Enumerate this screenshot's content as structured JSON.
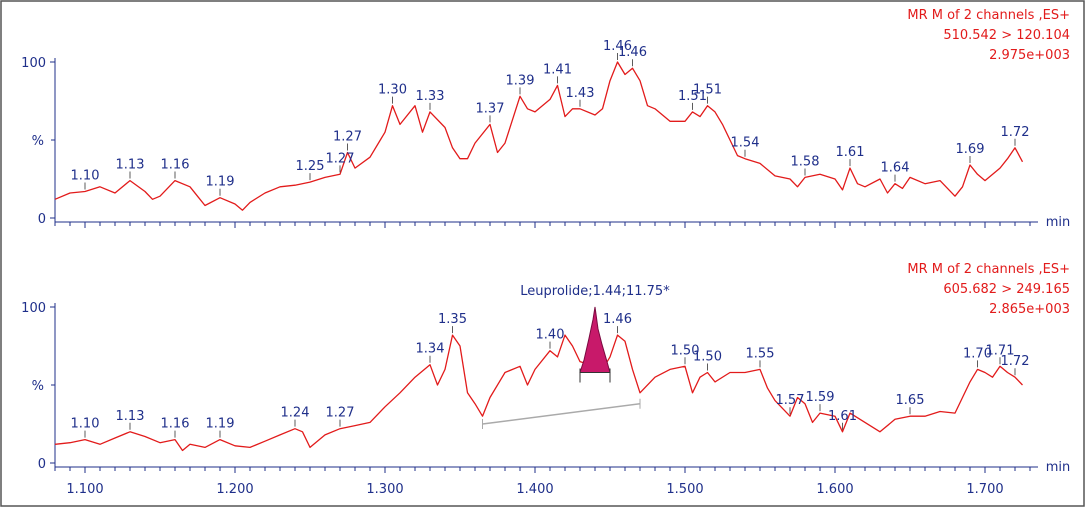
{
  "chart_data": [
    {
      "type": "line",
      "header": [
        "MR M of 2 channels ,ES+",
        "510.542 > 120.104",
        "2.975e+003"
      ],
      "xlabel": "min",
      "ylabel": "%",
      "y_ticks": [
        "100",
        "0"
      ],
      "ylim": [
        0,
        100
      ],
      "xlim": [
        1.08,
        1.73
      ],
      "series": [
        {
          "values": [
            [
              1.08,
              12
            ],
            [
              1.09,
              16
            ],
            [
              1.1,
              17
            ],
            [
              1.11,
              20
            ],
            [
              1.12,
              16
            ],
            [
              1.13,
              24
            ],
            [
              1.14,
              17
            ],
            [
              1.145,
              12
            ],
            [
              1.15,
              14
            ],
            [
              1.16,
              24
            ],
            [
              1.17,
              20
            ],
            [
              1.175,
              14
            ],
            [
              1.18,
              8
            ],
            [
              1.19,
              13
            ],
            [
              1.2,
              9
            ],
            [
              1.205,
              5
            ],
            [
              1.21,
              10
            ],
            [
              1.22,
              16
            ],
            [
              1.23,
              20
            ],
            [
              1.24,
              21
            ],
            [
              1.25,
              23
            ],
            [
              1.26,
              26
            ],
            [
              1.27,
              28
            ],
            [
              1.275,
              42
            ],
            [
              1.28,
              32
            ],
            [
              1.29,
              39
            ],
            [
              1.3,
              55
            ],
            [
              1.305,
              72
            ],
            [
              1.31,
              60
            ],
            [
              1.32,
              72
            ],
            [
              1.325,
              55
            ],
            [
              1.33,
              68
            ],
            [
              1.34,
              58
            ],
            [
              1.345,
              45
            ],
            [
              1.35,
              38
            ],
            [
              1.355,
              38
            ],
            [
              1.36,
              48
            ],
            [
              1.37,
              60
            ],
            [
              1.375,
              42
            ],
            [
              1.38,
              48
            ],
            [
              1.39,
              78
            ],
            [
              1.395,
              70
            ],
            [
              1.4,
              68
            ],
            [
              1.41,
              76
            ],
            [
              1.415,
              85
            ],
            [
              1.42,
              65
            ],
            [
              1.425,
              70
            ],
            [
              1.43,
              70
            ],
            [
              1.44,
              66
            ],
            [
              1.445,
              70
            ],
            [
              1.45,
              88
            ],
            [
              1.455,
              100
            ],
            [
              1.46,
              92
            ],
            [
              1.465,
              96
            ],
            [
              1.47,
              88
            ],
            [
              1.475,
              72
            ],
            [
              1.48,
              70
            ],
            [
              1.49,
              62
            ],
            [
              1.5,
              62
            ],
            [
              1.505,
              68
            ],
            [
              1.51,
              65
            ],
            [
              1.515,
              72
            ],
            [
              1.52,
              68
            ],
            [
              1.525,
              60
            ],
            [
              1.53,
              50
            ],
            [
              1.535,
              40
            ],
            [
              1.54,
              38
            ],
            [
              1.55,
              35
            ],
            [
              1.56,
              27
            ],
            [
              1.57,
              25
            ],
            [
              1.575,
              20
            ],
            [
              1.58,
              26
            ],
            [
              1.59,
              28
            ],
            [
              1.6,
              25
            ],
            [
              1.605,
              18
            ],
            [
              1.61,
              32
            ],
            [
              1.615,
              22
            ],
            [
              1.62,
              20
            ],
            [
              1.63,
              25
            ],
            [
              1.635,
              16
            ],
            [
              1.64,
              22
            ],
            [
              1.645,
              19
            ],
            [
              1.65,
              26
            ],
            [
              1.66,
              22
            ],
            [
              1.67,
              24
            ],
            [
              1.68,
              14
            ],
            [
              1.685,
              20
            ],
            [
              1.69,
              34
            ],
            [
              1.695,
              28
            ],
            [
              1.7,
              24
            ],
            [
              1.71,
              32
            ],
            [
              1.715,
              38
            ],
            [
              1.72,
              45
            ],
            [
              1.725,
              36
            ]
          ]
        }
      ],
      "peak_labels": [
        {
          "text": "1.10",
          "x": 1.1,
          "y": 17
        },
        {
          "text": "1.13",
          "x": 1.13,
          "y": 24
        },
        {
          "text": "1.16",
          "x": 1.16,
          "y": 24
        },
        {
          "text": "1.19",
          "x": 1.19,
          "y": 13
        },
        {
          "text": "1.25",
          "x": 1.25,
          "y": 23
        },
        {
          "text": "1.27",
          "x": 1.27,
          "y": 28
        },
        {
          "text": "1.27",
          "x": 1.275,
          "y": 42
        },
        {
          "text": "1.30",
          "x": 1.305,
          "y": 72
        },
        {
          "text": "1.33",
          "x": 1.33,
          "y": 68
        },
        {
          "text": "1.37",
          "x": 1.37,
          "y": 60
        },
        {
          "text": "1.39",
          "x": 1.39,
          "y": 78
        },
        {
          "text": "1.41",
          "x": 1.415,
          "y": 85
        },
        {
          "text": "1.43",
          "x": 1.43,
          "y": 70
        },
        {
          "text": "1.46",
          "x": 1.455,
          "y": 100
        },
        {
          "text": "1.46",
          "x": 1.465,
          "y": 96
        },
        {
          "text": "1.51",
          "x": 1.505,
          "y": 68
        },
        {
          "text": "1.51",
          "x": 1.515,
          "y": 72
        },
        {
          "text": "1.54",
          "x": 1.54,
          "y": 38
        },
        {
          "text": "1.58",
          "x": 1.58,
          "y": 26
        },
        {
          "text": "1.61",
          "x": 1.61,
          "y": 32
        },
        {
          "text": "1.64",
          "x": 1.64,
          "y": 22
        },
        {
          "text": "1.69",
          "x": 1.69,
          "y": 34
        },
        {
          "text": "1.72",
          "x": 1.72,
          "y": 45
        }
      ]
    },
    {
      "type": "line",
      "header": [
        "MR M of 2 channels ,ES+",
        "605.682 > 249.165",
        "2.865e+003"
      ],
      "xlabel": "min",
      "ylabel": "%",
      "y_ticks": [
        "100",
        "0"
      ],
      "ylim": [
        0,
        100
      ],
      "xlim": [
        1.08,
        1.73
      ],
      "x_ticks": [
        "1.100",
        "1.200",
        "1.300",
        "1.400",
        "1.500",
        "1.600",
        "1.700"
      ],
      "series": [
        {
          "values": [
            [
              1.08,
              12
            ],
            [
              1.09,
              13
            ],
            [
              1.1,
              15
            ],
            [
              1.11,
              12
            ],
            [
              1.12,
              16
            ],
            [
              1.13,
              20
            ],
            [
              1.14,
              17
            ],
            [
              1.15,
              13
            ],
            [
              1.16,
              15
            ],
            [
              1.165,
              8
            ],
            [
              1.17,
              12
            ],
            [
              1.18,
              10
            ],
            [
              1.19,
              15
            ],
            [
              1.2,
              11
            ],
            [
              1.21,
              10
            ],
            [
              1.22,
              14
            ],
            [
              1.23,
              18
            ],
            [
              1.24,
              22
            ],
            [
              1.245,
              20
            ],
            [
              1.25,
              10
            ],
            [
              1.26,
              18
            ],
            [
              1.27,
              22
            ],
            [
              1.28,
              24
            ],
            [
              1.29,
              26
            ],
            [
              1.3,
              36
            ],
            [
              1.31,
              45
            ],
            [
              1.32,
              55
            ],
            [
              1.33,
              63
            ],
            [
              1.335,
              50
            ],
            [
              1.34,
              60
            ],
            [
              1.345,
              82
            ],
            [
              1.35,
              75
            ],
            [
              1.355,
              45
            ],
            [
              1.36,
              38
            ],
            [
              1.365,
              30
            ],
            [
              1.37,
              42
            ],
            [
              1.38,
              58
            ],
            [
              1.39,
              62
            ],
            [
              1.395,
              50
            ],
            [
              1.4,
              60
            ],
            [
              1.41,
              72
            ],
            [
              1.415,
              68
            ],
            [
              1.42,
              82
            ],
            [
              1.425,
              75
            ],
            [
              1.43,
              65
            ],
            [
              1.44,
              62
            ],
            [
              1.445,
              60
            ],
            [
              1.45,
              68
            ],
            [
              1.455,
              82
            ],
            [
              1.46,
              78
            ],
            [
              1.465,
              60
            ],
            [
              1.47,
              45
            ],
            [
              1.48,
              55
            ],
            [
              1.49,
              60
            ],
            [
              1.5,
              62
            ],
            [
              1.505,
              45
            ],
            [
              1.51,
              55
            ],
            [
              1.515,
              58
            ],
            [
              1.52,
              52
            ],
            [
              1.53,
              58
            ],
            [
              1.54,
              58
            ],
            [
              1.55,
              60
            ],
            [
              1.555,
              48
            ],
            [
              1.56,
              40
            ],
            [
              1.57,
              30
            ],
            [
              1.575,
              42
            ],
            [
              1.58,
              38
            ],
            [
              1.585,
              26
            ],
            [
              1.59,
              32
            ],
            [
              1.6,
              30
            ],
            [
              1.605,
              20
            ],
            [
              1.61,
              32
            ],
            [
              1.62,
              26
            ],
            [
              1.63,
              20
            ],
            [
              1.64,
              28
            ],
            [
              1.65,
              30
            ],
            [
              1.66,
              30
            ],
            [
              1.67,
              33
            ],
            [
              1.68,
              32
            ],
            [
              1.685,
              42
            ],
            [
              1.69,
              52
            ],
            [
              1.695,
              60
            ],
            [
              1.7,
              58
            ],
            [
              1.705,
              55
            ],
            [
              1.71,
              62
            ],
            [
              1.715,
              58
            ],
            [
              1.72,
              55
            ],
            [
              1.725,
              50
            ]
          ]
        }
      ],
      "baseline": [
        [
          1.365,
          25
        ],
        [
          1.47,
          38
        ]
      ],
      "integrated_peak": {
        "label": "Leuprolide;1.44;11.75*",
        "apex_x": 1.44,
        "start_x": 1.43,
        "end_x": 1.45
      },
      "peak_labels": [
        {
          "text": "1.10",
          "x": 1.1,
          "y": 15
        },
        {
          "text": "1.13",
          "x": 1.13,
          "y": 20
        },
        {
          "text": "1.16",
          "x": 1.16,
          "y": 15
        },
        {
          "text": "1.19",
          "x": 1.19,
          "y": 15
        },
        {
          "text": "1.24",
          "x": 1.24,
          "y": 22
        },
        {
          "text": "1.27",
          "x": 1.27,
          "y": 22
        },
        {
          "text": "1.34",
          "x": 1.33,
          "y": 63
        },
        {
          "text": "1.35",
          "x": 1.345,
          "y": 82
        },
        {
          "text": "1.40",
          "x": 1.41,
          "y": 72
        },
        {
          "text": "1.46",
          "x": 1.455,
          "y": 82
        },
        {
          "text": "1.50",
          "x": 1.5,
          "y": 62
        },
        {
          "text": "1.50",
          "x": 1.515,
          "y": 58
        },
        {
          "text": "1.55",
          "x": 1.55,
          "y": 60
        },
        {
          "text": "1.57",
          "x": 1.57,
          "y": 30
        },
        {
          "text": "1.59",
          "x": 1.59,
          "y": 32
        },
        {
          "text": "1.61",
          "x": 1.605,
          "y": 20
        },
        {
          "text": "1.65",
          "x": 1.65,
          "y": 30
        },
        {
          "text": "1.70",
          "x": 1.695,
          "y": 60
        },
        {
          "text": "1.71",
          "x": 1.71,
          "y": 62
        },
        {
          "text": "1.72",
          "x": 1.72,
          "y": 55
        }
      ]
    }
  ],
  "colors": {
    "trace": "#e21b1b",
    "axis": "#1f2f8a",
    "peak_fill": "#c8196a",
    "baseline": "#aaaaaa",
    "frame": "#555555"
  }
}
